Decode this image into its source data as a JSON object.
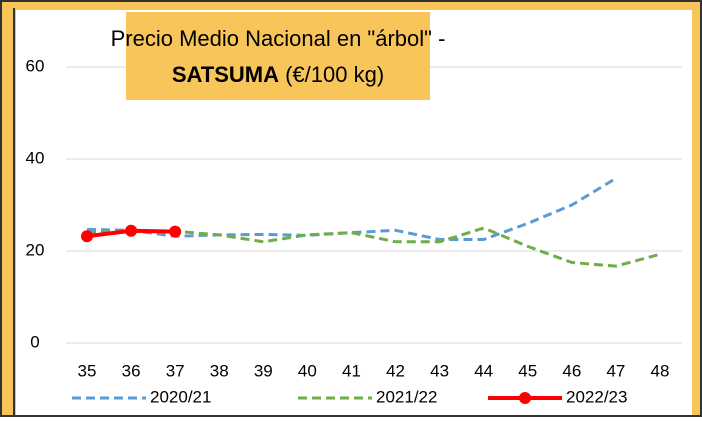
{
  "chart_data": {
    "type": "line",
    "title": {
      "line1": "Precio Medio Nacional en \"árbol\" -",
      "bold": "SATSUMA",
      "rest": " (€/100 kg)"
    },
    "categories": [
      "35",
      "36",
      "37",
      "38",
      "39",
      "40",
      "41",
      "42",
      "43",
      "44",
      "45",
      "46",
      "47",
      "48"
    ],
    "series": [
      {
        "name": "2020/21",
        "color": "#5b9bd5",
        "dashed": true,
        "markers": false,
        "values": [
          24.7,
          24.5,
          23.2,
          23.5,
          23.6,
          23.4,
          24,
          24.5,
          22.5,
          22.5,
          26,
          30,
          35.8,
          null
        ]
      },
      {
        "name": "2021/22",
        "color": "#70ad47",
        "dashed": true,
        "markers": false,
        "values": [
          24,
          24.3,
          24.3,
          23.5,
          22,
          23.5,
          24,
          22,
          22,
          25,
          21,
          17.5,
          16.7,
          19.3
        ]
      },
      {
        "name": "2022/23",
        "color": "#ff0000",
        "dashed": false,
        "markers": true,
        "values": [
          23.2,
          24.4,
          24.2,
          null,
          null,
          null,
          null,
          null,
          null,
          null,
          null,
          null,
          null,
          null
        ]
      }
    ],
    "ylim": [
      0,
      60
    ],
    "yticks": [
      0,
      20,
      40,
      60
    ],
    "grid": true,
    "legend": "bottom"
  }
}
